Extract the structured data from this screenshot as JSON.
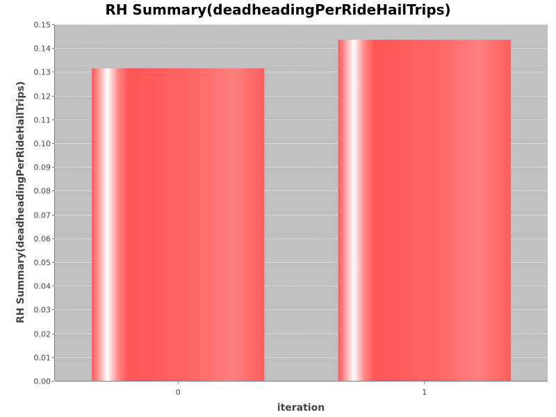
{
  "chart_data": {
    "type": "bar",
    "title": "RH Summary(deadheadingPerRideHailTrips)",
    "xlabel": "iteration",
    "ylabel": "RH Summary(deadheadingPerRideHailTrips)",
    "categories": [
      "0",
      "1"
    ],
    "values": [
      0.1315,
      0.1435
    ],
    "ylim": [
      0,
      0.15
    ],
    "yticks": [
      "0.00",
      "0.01",
      "0.02",
      "0.03",
      "0.04",
      "0.05",
      "0.06",
      "0.07",
      "0.08",
      "0.09",
      "0.10",
      "0.11",
      "0.12",
      "0.13",
      "0.14",
      "0.15"
    ],
    "grid": true,
    "colors": {
      "plot_background": "#c0c0c0",
      "bar_base": "#ff5555",
      "bar_highlight": "#ffffff",
      "gridline": "#ffffff"
    }
  }
}
